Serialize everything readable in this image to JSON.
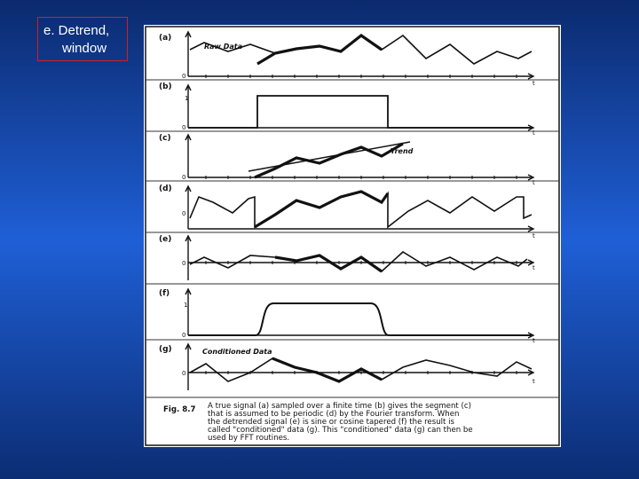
{
  "slide": {
    "title_line1": "e. Detrend,",
    "title_line2": "window"
  },
  "figure": {
    "panels": [
      {
        "label": "(a)",
        "annotation": "Raw Data",
        "zero": "0",
        "t": "t"
      },
      {
        "label": "(b)",
        "one": "1",
        "zero": "0",
        "t": "t"
      },
      {
        "label": "(c)",
        "annotation": "Trend",
        "zero": "0",
        "t": "t"
      },
      {
        "label": "(d)",
        "zero": "0",
        "t": "t"
      },
      {
        "label": "(e)",
        "zero": "0",
        "t": "t"
      },
      {
        "label": "(f)",
        "one": "1",
        "zero": "0",
        "t": "t"
      },
      {
        "label": "(g)",
        "annotation": "Conditioned Data",
        "zero": "0",
        "t": "t"
      }
    ],
    "caption": {
      "fig_label": "Fig. 8.7",
      "lines": [
        "A true signal (a) sampled over a finite time (b) gives the segment (c)",
        "that is assumed to be periodic (d) by the Fourier transform. When",
        "the detrended signal (e) is sine or cosine tapered (f) the result is",
        "called \"conditioned\" data (g). This \"conditioned\" data (g) can then be",
        "used by FFT routines."
      ]
    }
  }
}
